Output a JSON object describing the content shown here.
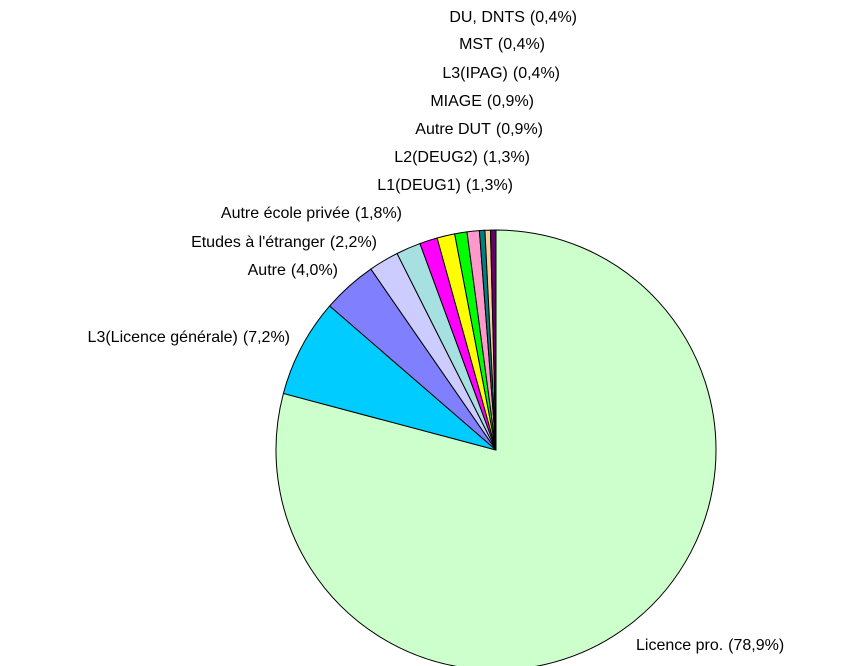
{
  "chart_data": {
    "type": "pie",
    "categories": [
      "Licence pro.",
      "L3(Licence générale)",
      "Autre",
      "Etudes à l'étranger",
      "Autre école privée",
      "L1(DEUG1)",
      "L2(DEUG2)",
      "Autre DUT",
      "MIAGE",
      "L3(IPAG)",
      "MST",
      "DU, DNTS"
    ],
    "values": [
      78.9,
      7.2,
      4.0,
      2.2,
      1.8,
      1.3,
      1.3,
      0.9,
      0.9,
      0.4,
      0.4,
      0.4
    ],
    "value_labels": [
      "(78,9%)",
      "(7,2%)",
      "(4,0%)",
      "(2,2%)",
      "(1,8%)",
      "(1,3%)",
      "(1,3%)",
      "(0,9%)",
      "(0,9%)",
      "(0,4%)",
      "(0,4%)",
      "(0,4%)"
    ],
    "colors": [
      "#ccffcc",
      "#00ccff",
      "#8080ff",
      "#ccccff",
      "#a6e0e0",
      "#ff00ff",
      "#ffff00",
      "#00ff00",
      "#ff99cc",
      "#008080",
      "#ffcc99",
      "#660066"
    ]
  }
}
